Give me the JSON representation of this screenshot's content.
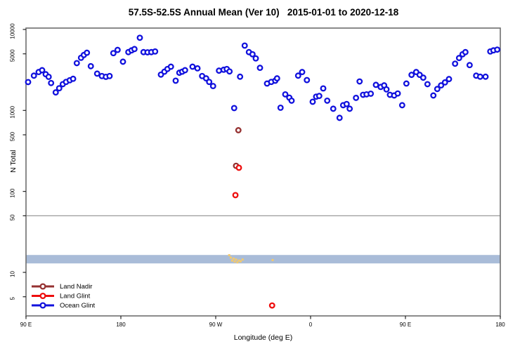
{
  "title": "57.5S-52.5S Annual Mean (Ver 10)   2015-01-01 to 2020-12-18",
  "x_axis": {
    "label": "Longitude (deg E)",
    "range": [
      0,
      450
    ],
    "ticks": [
      {
        "pos": 0,
        "label": "90 E"
      },
      {
        "pos": 90,
        "label": "180"
      },
      {
        "pos": 180,
        "label": "90 W"
      },
      {
        "pos": 270,
        "label": "0"
      },
      {
        "pos": 360,
        "label": "90 E"
      },
      {
        "pos": 450,
        "label": "180"
      }
    ]
  },
  "y_axis": {
    "label": "N Total",
    "scale": "log",
    "range": [
      2.9,
      10400
    ],
    "ticks": [
      {
        "v": 10000,
        "label": "10000"
      },
      {
        "v": 5000,
        "label": "5000"
      },
      {
        "v": 1000,
        "label": "1000"
      },
      {
        "v": 500,
        "label": "500"
      },
      {
        "v": 100,
        "label": "100"
      },
      {
        "v": 50,
        "label": "50"
      },
      {
        "v": 10,
        "label": "10"
      },
      {
        "v": 5,
        "label": "5"
      }
    ]
  },
  "reference_line": {
    "value": 50,
    "color": "#9b9b9b"
  },
  "highlight_band": {
    "value_from": 12.9,
    "value_to": 16.4,
    "color": "#a9bcd8"
  },
  "legend": {
    "items": [
      {
        "label": "Land Nadir",
        "color": "#953131"
      },
      {
        "label": "Land Glint",
        "color": "#ee0e0e"
      },
      {
        "label": "Ocean Glint",
        "color": "#1111dd"
      }
    ]
  },
  "chart_data": {
    "type": "scatter",
    "x_unit": "deg along axis from 90E (wrapping eastward through 180, 90W, 0, 90E, 180)",
    "series": [
      {
        "name": "Ocean Glint",
        "marker": "open-circle",
        "color": "#1111dd",
        "points": [
          [
            2,
            2240
          ],
          [
            7.5,
            2690
          ],
          [
            12,
            2980
          ],
          [
            15.3,
            3140
          ],
          [
            18.7,
            2800
          ],
          [
            21.5,
            2600
          ],
          [
            23.8,
            2180
          ],
          [
            28.2,
            1670
          ],
          [
            31.5,
            1880
          ],
          [
            34.9,
            2110
          ],
          [
            38,
            2250
          ],
          [
            41.5,
            2360
          ],
          [
            44.7,
            2460
          ],
          [
            48.2,
            3840
          ],
          [
            52.2,
            4470
          ],
          [
            54.9,
            4840
          ],
          [
            57.8,
            5160
          ],
          [
            61.5,
            3520
          ],
          [
            67.5,
            2850
          ],
          [
            72,
            2660
          ],
          [
            75.8,
            2600
          ],
          [
            79.3,
            2660
          ],
          [
            82.9,
            5100
          ],
          [
            86.9,
            5590
          ],
          [
            92,
            4000
          ],
          [
            97.1,
            5250
          ],
          [
            100.2,
            5520
          ],
          [
            102.9,
            5730
          ],
          [
            108,
            7900
          ],
          [
            111.5,
            5250
          ],
          [
            115.3,
            5220
          ],
          [
            118.9,
            5250
          ],
          [
            122.5,
            5350
          ],
          [
            128,
            2770
          ],
          [
            131.3,
            3010
          ],
          [
            134.2,
            3250
          ],
          [
            137.5,
            3470
          ],
          [
            142,
            2330
          ],
          [
            145.5,
            2920
          ],
          [
            148.2,
            3010
          ],
          [
            150.9,
            3140
          ],
          [
            158,
            3470
          ],
          [
            162.7,
            3310
          ],
          [
            167.1,
            2660
          ],
          [
            170.9,
            2490
          ],
          [
            173.8,
            2250
          ],
          [
            177.5,
            2000
          ],
          [
            183.1,
            3100
          ],
          [
            187.5,
            3180
          ],
          [
            190.5,
            3250
          ],
          [
            193.1,
            3030
          ],
          [
            197.5,
            1070
          ],
          [
            203.1,
            2610
          ],
          [
            207.5,
            6320
          ],
          [
            211.5,
            5250
          ],
          [
            214.9,
            4940
          ],
          [
            218,
            4390
          ],
          [
            222,
            3360
          ],
          [
            228.7,
            2150
          ],
          [
            232.7,
            2250
          ],
          [
            236.5,
            2330
          ],
          [
            238.2,
            2490
          ],
          [
            241.5,
            1080
          ],
          [
            246,
            1580
          ],
          [
            249.8,
            1440
          ],
          [
            252,
            1320
          ],
          [
            258.2,
            2690
          ],
          [
            262,
            2980
          ],
          [
            266.5,
            2370
          ],
          [
            272,
            1280
          ],
          [
            275.3,
            1480
          ],
          [
            278.2,
            1510
          ],
          [
            282,
            1870
          ],
          [
            285.8,
            1320
          ],
          [
            291.5,
            1050
          ],
          [
            297.5,
            810
          ],
          [
            300.9,
            1160
          ],
          [
            304.2,
            1200
          ],
          [
            307.1,
            1050
          ],
          [
            313.1,
            1430
          ],
          [
            316.5,
            2280
          ],
          [
            319.8,
            1560
          ],
          [
            323.1,
            1580
          ],
          [
            327.1,
            1610
          ],
          [
            332,
            2070
          ],
          [
            336.5,
            1950
          ],
          [
            339.8,
            2040
          ],
          [
            342,
            1820
          ],
          [
            345.3,
            1560
          ],
          [
            349.3,
            1530
          ],
          [
            352.7,
            1620
          ],
          [
            356.9,
            1160
          ],
          [
            360.9,
            2150
          ],
          [
            365.8,
            2750
          ],
          [
            370.2,
            2980
          ],
          [
            373.5,
            2750
          ],
          [
            376.9,
            2540
          ],
          [
            380.9,
            2110
          ],
          [
            386.5,
            1530
          ],
          [
            390.2,
            1840
          ],
          [
            393.8,
            2040
          ],
          [
            397.5,
            2220
          ],
          [
            401.3,
            2440
          ],
          [
            407.1,
            3780
          ],
          [
            410.9,
            4440
          ],
          [
            414.2,
            4940
          ],
          [
            416.9,
            5250
          ],
          [
            420.9,
            3630
          ],
          [
            427.1,
            2690
          ],
          [
            430.9,
            2610
          ],
          [
            436,
            2610
          ],
          [
            440.5,
            5350
          ],
          [
            443.5,
            5520
          ],
          [
            447.1,
            5640
          ]
        ]
      },
      {
        "name": "Land Nadir",
        "marker": "open-circle",
        "color": "#953131",
        "points": [
          [
            201.5,
            570
          ],
          [
            199.3,
            207
          ]
        ]
      },
      {
        "name": "Land Glint",
        "marker": "open-circle",
        "color": "#ee0e0e",
        "points": [
          [
            202,
            196
          ],
          [
            198.7,
            90
          ],
          [
            233.5,
            3.9
          ]
        ]
      },
      {
        "name": "flagged-marks",
        "marker": "small-square",
        "color": "#f3c96d",
        "points": [
          [
            192.8,
            16.3
          ],
          [
            194.3,
            15.2
          ],
          [
            195.6,
            14.0
          ],
          [
            197,
            14.8
          ],
          [
            198,
            13.6
          ],
          [
            199.3,
            14.4
          ],
          [
            200.6,
            13.3
          ],
          [
            202,
            14.0
          ],
          [
            203.6,
            13.7
          ],
          [
            205.5,
            14.4
          ],
          [
            234,
            14.2
          ]
        ]
      }
    ]
  }
}
